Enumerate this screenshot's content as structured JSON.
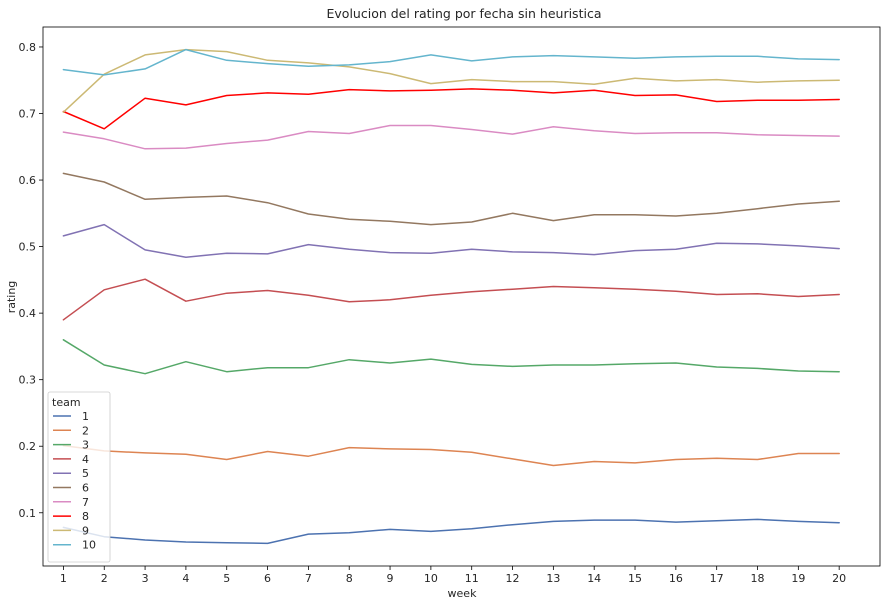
{
  "chart_data": {
    "type": "line",
    "title": "Evolucion del rating por fecha sin heuristica",
    "xlabel": "week",
    "ylabel": "rating",
    "x": [
      1,
      2,
      3,
      4,
      5,
      6,
      7,
      8,
      9,
      10,
      11,
      12,
      13,
      14,
      15,
      16,
      17,
      18,
      19,
      20
    ],
    "x_ticks": [
      "1",
      "2",
      "3",
      "4",
      "5",
      "6",
      "7",
      "8",
      "9",
      "10",
      "11",
      "12",
      "13",
      "14",
      "15",
      "16",
      "17",
      "18",
      "19",
      "20"
    ],
    "xlim": [
      0.5,
      21
    ],
    "ylim": [
      0.02,
      0.83
    ],
    "y_ticks": [
      0.1,
      0.2,
      0.3,
      0.4,
      0.5,
      0.6,
      0.7,
      0.8
    ],
    "y_tick_labels": [
      "0.1",
      "0.2",
      "0.3",
      "0.4",
      "0.5",
      "0.6",
      "0.7",
      "0.8"
    ],
    "grid": false,
    "legend": {
      "title": "team",
      "placement": "lower-left"
    },
    "series": [
      {
        "name": "1",
        "color": "#4c72b0",
        "values": [
          0.078,
          0.064,
          0.059,
          0.056,
          0.055,
          0.054,
          0.068,
          0.07,
          0.075,
          0.072,
          0.076,
          0.082,
          0.087,
          0.089,
          0.089,
          0.086,
          0.088,
          0.09,
          0.087,
          0.085
        ]
      },
      {
        "name": "2",
        "color": "#dd8452",
        "values": [
          0.201,
          0.193,
          0.19,
          0.188,
          0.18,
          0.192,
          0.185,
          0.198,
          0.196,
          0.195,
          0.191,
          0.181,
          0.171,
          0.177,
          0.175,
          0.18,
          0.182,
          0.18,
          0.189,
          0.189
        ]
      },
      {
        "name": "3",
        "color": "#55a868",
        "values": [
          0.36,
          0.322,
          0.309,
          0.327,
          0.312,
          0.318,
          0.318,
          0.33,
          0.325,
          0.331,
          0.323,
          0.32,
          0.322,
          0.322,
          0.324,
          0.325,
          0.319,
          0.317,
          0.313,
          0.312
        ]
      },
      {
        "name": "4",
        "color": "#c44e52",
        "values": [
          0.39,
          0.435,
          0.451,
          0.418,
          0.43,
          0.434,
          0.427,
          0.417,
          0.42,
          0.427,
          0.432,
          0.436,
          0.44,
          0.438,
          0.436,
          0.433,
          0.428,
          0.429,
          0.425,
          0.428
        ]
      },
      {
        "name": "5",
        "color": "#8172b3",
        "values": [
          0.516,
          0.533,
          0.495,
          0.484,
          0.49,
          0.489,
          0.503,
          0.496,
          0.491,
          0.49,
          0.496,
          0.492,
          0.491,
          0.488,
          0.494,
          0.496,
          0.505,
          0.504,
          0.501,
          0.497
        ]
      },
      {
        "name": "6",
        "color": "#937860",
        "values": [
          0.61,
          0.597,
          0.571,
          0.574,
          0.576,
          0.566,
          0.549,
          0.541,
          0.538,
          0.533,
          0.537,
          0.55,
          0.539,
          0.548,
          0.548,
          0.546,
          0.55,
          0.557,
          0.564,
          0.568
        ]
      },
      {
        "name": "7",
        "color": "#da8bc3",
        "values": [
          0.672,
          0.662,
          0.647,
          0.648,
          0.655,
          0.66,
          0.673,
          0.67,
          0.682,
          0.682,
          0.676,
          0.669,
          0.68,
          0.674,
          0.67,
          0.671,
          0.671,
          0.668,
          0.667,
          0.666
        ]
      },
      {
        "name": "8",
        "color": "#ff0000",
        "values": [
          0.703,
          0.677,
          0.723,
          0.713,
          0.727,
          0.731,
          0.729,
          0.736,
          0.734,
          0.735,
          0.737,
          0.735,
          0.731,
          0.735,
          0.727,
          0.728,
          0.718,
          0.72,
          0.72,
          0.721
        ]
      },
      {
        "name": "9",
        "color": "#ccb974",
        "values": [
          0.702,
          0.759,
          0.788,
          0.796,
          0.793,
          0.78,
          0.776,
          0.77,
          0.76,
          0.745,
          0.751,
          0.748,
          0.748,
          0.744,
          0.753,
          0.749,
          0.751,
          0.747,
          0.749,
          0.75
        ]
      },
      {
        "name": "10",
        "color": "#64b5cd",
        "values": [
          0.766,
          0.758,
          0.767,
          0.796,
          0.78,
          0.775,
          0.771,
          0.773,
          0.778,
          0.788,
          0.779,
          0.785,
          0.787,
          0.785,
          0.783,
          0.785,
          0.786,
          0.786,
          0.782,
          0.781
        ]
      }
    ]
  }
}
